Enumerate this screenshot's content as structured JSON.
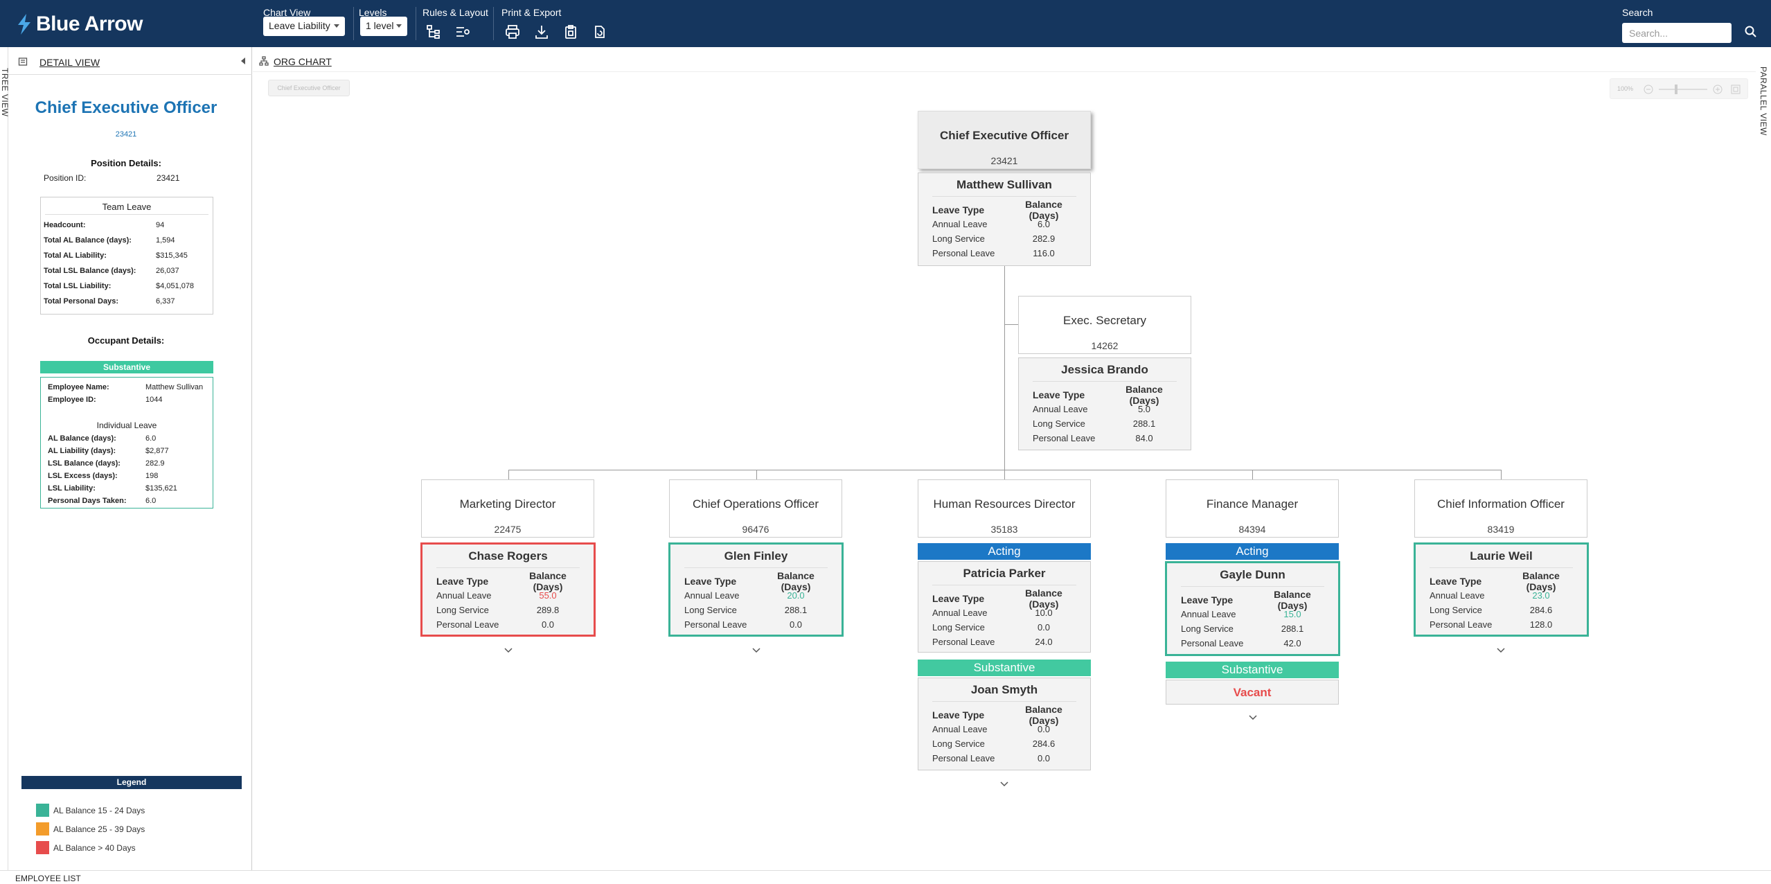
{
  "app": {
    "name": "Blue Arrow"
  },
  "toolbar": {
    "chart_view": {
      "label": "Chart View",
      "value": "Leave Liability"
    },
    "levels": {
      "label": "Levels",
      "value": "1 level"
    },
    "rules": {
      "label": "Rules & Layout"
    },
    "print": {
      "label": "Print & Export"
    },
    "search": {
      "label": "Search",
      "placeholder": "Search..."
    }
  },
  "rails": {
    "tree": "TREE VIEW",
    "parallel": "PARALLEL VIEW"
  },
  "detail": {
    "header": "DETAIL VIEW",
    "title": "Chief Executive Officer",
    "position_id": "23421",
    "position_details_title": "Position Details:",
    "position_id_label": "Position ID:",
    "position_id_value": "23421",
    "team_leave": {
      "title": "Team Leave",
      "rows": [
        {
          "label": "Headcount:",
          "value": "94"
        },
        {
          "label": "Total AL Balance (days):",
          "value": "1,594"
        },
        {
          "label": "Total AL Liability:",
          "value": "$315,345"
        },
        {
          "label": "Total LSL Balance (days):",
          "value": "26,037"
        },
        {
          "label": "Total LSL Liability:",
          "value": "$4,051,078"
        },
        {
          "label": "Total Personal Days:",
          "value": "6,337"
        }
      ]
    },
    "occupant_title": "Occupant Details:",
    "occupant_status": "Substantive",
    "occupant": {
      "name_label": "Employee Name:",
      "name_value": "Matthew Sullivan",
      "id_label": "Employee ID:",
      "id_value": "1044",
      "individual_title": "Individual Leave",
      "rows": [
        {
          "label": "AL Balance (days):",
          "value": "6.0"
        },
        {
          "label": "AL Liability (days):",
          "value": "$2,877"
        },
        {
          "label": "LSL Balance (days):",
          "value": "282.9"
        },
        {
          "label": "LSL Excess (days):",
          "value": "198"
        },
        {
          "label": "LSL Liability:",
          "value": "$135,621"
        },
        {
          "label": "Personal Days Taken:",
          "value": "6.0"
        }
      ]
    },
    "legend": {
      "title": "Legend",
      "items": [
        {
          "label": "AL Balance 15 - 24 Days",
          "color": "#3ab397"
        },
        {
          "label": "AL Balance 25 - 39 Days",
          "color": "#f39c2b"
        },
        {
          "label": "AL Balance > 40 Days",
          "color": "#e74c4c"
        }
      ]
    }
  },
  "chart": {
    "header": "ORG CHART",
    "breadcrumb": "Chief Executive Officer",
    "zoom": "100%",
    "table_headers": {
      "type": "Leave Type",
      "balance": "Balance (Days)"
    },
    "leave_types": [
      "Annual Leave",
      "Long Service",
      "Personal Leave"
    ],
    "root": {
      "title": "Chief Executive Officer",
      "id": "23421",
      "person": "Matthew Sullivan",
      "balances": [
        "6.0",
        "282.9",
        "116.0"
      ]
    },
    "secretary": {
      "title": "Exec. Secretary",
      "id": "14262",
      "person": "Jessica Brando",
      "balances": [
        "5.0",
        "288.1",
        "84.0"
      ]
    },
    "marketing": {
      "title": "Marketing Director",
      "id": "22475",
      "person": "Chase Rogers",
      "balances": [
        "55.0",
        "289.8",
        "0.0"
      ]
    },
    "operations": {
      "title": "Chief Operations Officer",
      "id": "96476",
      "person": "Glen Finley",
      "balances": [
        "20.0",
        "288.1",
        "0.0"
      ]
    },
    "hr": {
      "title": "Human Resources Director",
      "id": "35183",
      "acting_label": "Acting",
      "person": "Patricia Parker",
      "balances": [
        "10.0",
        "0.0",
        "24.0"
      ],
      "substantive_label": "Substantive",
      "person2": "Joan Smyth",
      "balances2": [
        "0.0",
        "284.6",
        "0.0"
      ]
    },
    "finance": {
      "title": "Finance Manager",
      "id": "84394",
      "acting_label": "Acting",
      "person": "Gayle Dunn",
      "balances": [
        "15.0",
        "288.1",
        "42.0"
      ],
      "substantive_label": "Substantive",
      "vacant": "Vacant"
    },
    "cio": {
      "title": "Chief Information Officer",
      "id": "83419",
      "person": "Laurie Weil",
      "balances": [
        "23.0",
        "284.6",
        "128.0"
      ]
    }
  },
  "footer": {
    "employee_list": "EMPLOYEE LIST"
  }
}
